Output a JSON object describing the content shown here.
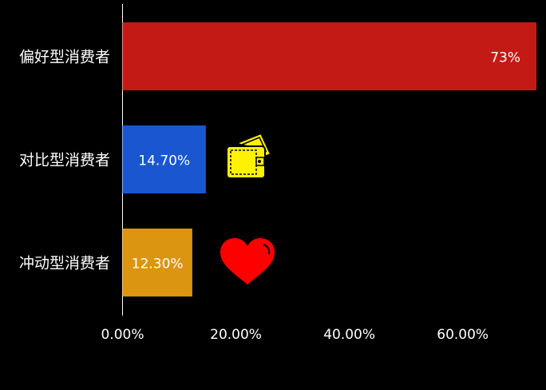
{
  "chart_data": {
    "type": "bar",
    "orientation": "horizontal",
    "categories": [
      "偏好型消费者",
      "对比型消费者",
      "冲动型消费者"
    ],
    "values": [
      73,
      14.7,
      12.3
    ],
    "data_labels": [
      "73%",
      "14.70%",
      "12.30%"
    ],
    "colors": [
      "#C41A16",
      "#1A56CF",
      "#DB9511"
    ],
    "xlim": [
      0,
      73
    ],
    "xticks": [
      0,
      20,
      40,
      60
    ],
    "xtick_labels": [
      "0.00%",
      "20.00%",
      "40.00%",
      "60.00%"
    ],
    "grid": false,
    "icons": [
      "wallet-icon",
      "heart-icon"
    ]
  }
}
